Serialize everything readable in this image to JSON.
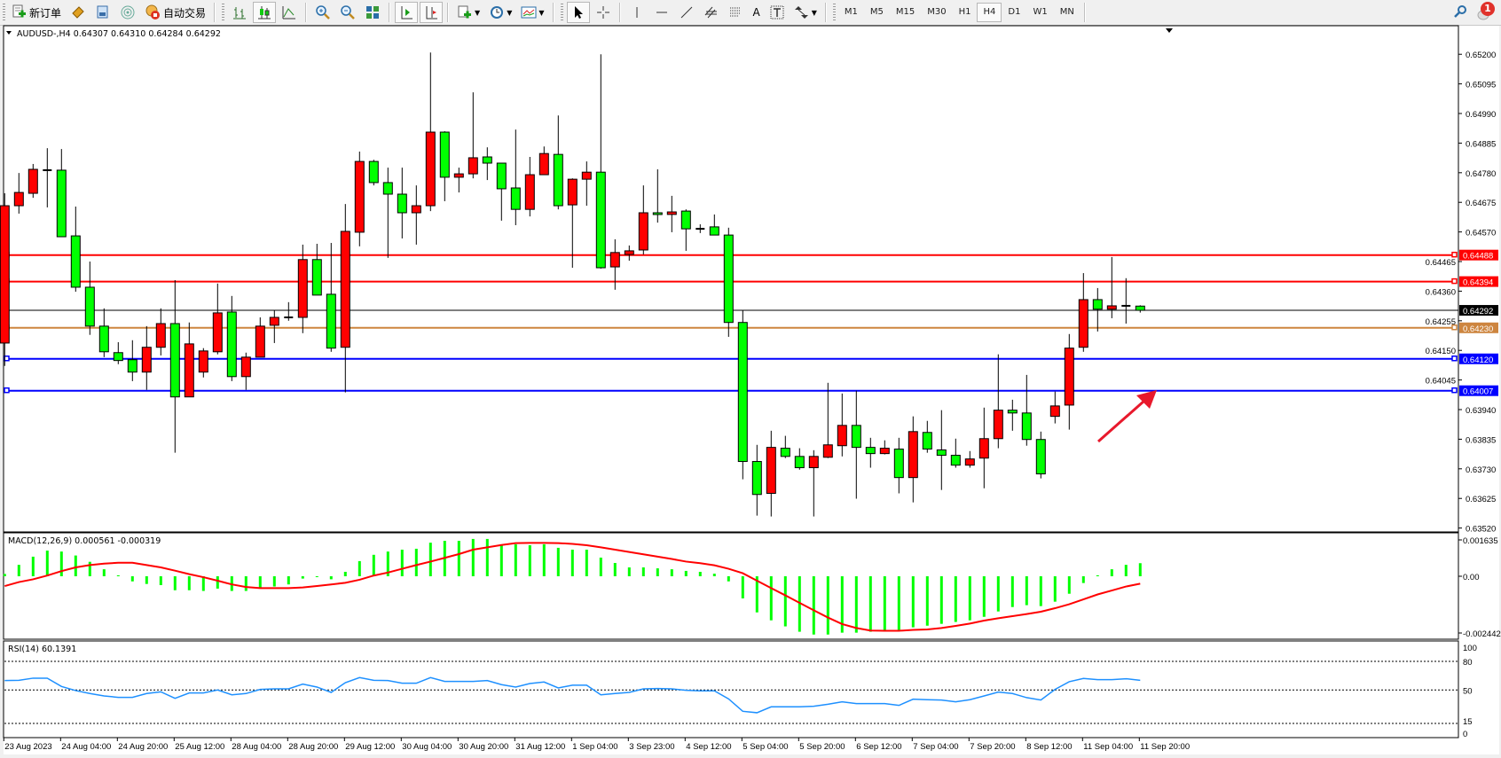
{
  "toolbar": {
    "new_order_label": "新订单",
    "auto_trading_label": "自动交易",
    "timeframes": [
      "M1",
      "M5",
      "M15",
      "M30",
      "H1",
      "H4",
      "D1",
      "W1",
      "MN"
    ],
    "active_timeframe": "H4",
    "notification_count": "1",
    "text_tool_label": "A"
  },
  "chart": {
    "header": "AUDUSD-,H4  0.64307 0.64310 0.64284 0.64292",
    "price_ticks": [
      "0.65200",
      "0.65095",
      "0.64990",
      "0.64885",
      "0.64780",
      "0.64675",
      "0.64570",
      "0.64465",
      "0.64360",
      "0.64255",
      "0.64150",
      "0.64045",
      "0.63940",
      "0.63835",
      "0.63730",
      "0.63625",
      "0.63520"
    ],
    "bid_line": {
      "price": 0.64292,
      "label": "0.64292",
      "color": "#000000"
    },
    "levels": [
      {
        "price": 0.64488,
        "label": "0.64488",
        "color": "#ff0000"
      },
      {
        "price": 0.64394,
        "label": "0.64394",
        "color": "#ff0000"
      },
      {
        "price": 0.6423,
        "label": "0.64230",
        "color": "#cd853f"
      },
      {
        "price": 0.6412,
        "label": "0.64120",
        "color": "#0000ff"
      },
      {
        "price": 0.64007,
        "label": "0.64007",
        "color": "#0000ff"
      }
    ],
    "arrow_color": "#e8192c",
    "bull_color": "#ff0000",
    "bear_color": "#00ff00"
  },
  "chart_data": {
    "type": "candlestick",
    "symbol": "AUDUSD-",
    "timeframe": "H4",
    "ylim": [
      0.6352,
      0.652
    ],
    "x_labels": [
      "23 Aug 2023",
      "24 Aug 04:00",
      "24 Aug 20:00",
      "25 Aug 12:00",
      "28 Aug 04:00",
      "28 Aug 20:00",
      "29 Aug 12:00",
      "30 Aug 04:00",
      "30 Aug 20:00",
      "31 Aug 12:00",
      "1 Sep 04:00",
      "3 Sep 23:00",
      "4 Sep 12:00",
      "5 Sep 04:00",
      "5 Sep 20:00",
      "6 Sep 12:00",
      "7 Sep 04:00",
      "7 Sep 20:00",
      "8 Sep 12:00",
      "11 Sep 04:00",
      "11 Sep 20:00"
    ],
    "ohlc": [
      [
        0.64176,
        0.64707,
        0.64095,
        0.64663
      ],
      [
        0.64663,
        0.64779,
        0.64635,
        0.6471
      ],
      [
        0.64707,
        0.64811,
        0.64691,
        0.64792
      ],
      [
        0.64789,
        0.64867,
        0.64657,
        0.64789
      ],
      [
        0.64789,
        0.64864,
        0.64553,
        0.64553
      ],
      [
        0.64556,
        0.6466,
        0.64358,
        0.64374
      ],
      [
        0.64374,
        0.64465,
        0.64205,
        0.64236
      ],
      [
        0.64236,
        0.64299,
        0.64126,
        0.64145
      ],
      [
        0.64142,
        0.64179,
        0.64101,
        0.64114
      ],
      [
        0.64117,
        0.64186,
        0.64041,
        0.64073
      ],
      [
        0.64073,
        0.64236,
        0.6401,
        0.64161
      ],
      [
        0.64161,
        0.64299,
        0.64132,
        0.64245
      ],
      [
        0.64245,
        0.64399,
        0.63787,
        0.63985
      ],
      [
        0.63985,
        0.64249,
        0.63985,
        0.64173
      ],
      [
        0.64073,
        0.64158,
        0.64054,
        0.64148
      ],
      [
        0.64145,
        0.64387,
        0.64136,
        0.64283
      ],
      [
        0.64286,
        0.64343,
        0.64041,
        0.64057
      ],
      [
        0.64057,
        0.64142,
        0.6401,
        0.64126
      ],
      [
        0.64126,
        0.64267,
        0.64126,
        0.64236
      ],
      [
        0.64239,
        0.64293,
        0.64176,
        0.64267
      ],
      [
        0.64267,
        0.64321,
        0.64255,
        0.64267
      ],
      [
        0.64267,
        0.64525,
        0.64211,
        0.64472
      ],
      [
        0.64472,
        0.64528,
        0.64346,
        0.64346
      ],
      [
        0.64349,
        0.64531,
        0.64145,
        0.64158
      ],
      [
        0.64161,
        0.64669,
        0.64001,
        0.64572
      ],
      [
        0.64569,
        0.64855,
        0.64519,
        0.6482
      ],
      [
        0.6482,
        0.64826,
        0.64735,
        0.64745
      ],
      [
        0.64745,
        0.64798,
        0.64478,
        0.64704
      ],
      [
        0.64704,
        0.64798,
        0.64547,
        0.64638
      ],
      [
        0.64638,
        0.64735,
        0.64525,
        0.64663
      ],
      [
        0.64663,
        0.65206,
        0.64644,
        0.64924
      ],
      [
        0.64924,
        0.64927,
        0.64679,
        0.64764
      ],
      [
        0.64764,
        0.64798,
        0.6471,
        0.64776
      ],
      [
        0.64776,
        0.65065,
        0.6476,
        0.64833
      ],
      [
        0.64836,
        0.6487,
        0.64754,
        0.64814
      ],
      [
        0.64814,
        0.64814,
        0.6461,
        0.64723
      ],
      [
        0.64726,
        0.64933,
        0.64594,
        0.6465
      ],
      [
        0.6465,
        0.64836,
        0.64625,
        0.64773
      ],
      [
        0.64773,
        0.64873,
        0.64773,
        0.64848
      ],
      [
        0.64845,
        0.64983,
        0.6465,
        0.64663
      ],
      [
        0.64666,
        0.6476,
        0.64443,
        0.64757
      ],
      [
        0.64757,
        0.6482,
        0.64663,
        0.64782
      ],
      [
        0.64782,
        0.652,
        0.6444,
        0.64443
      ],
      [
        0.64446,
        0.64544,
        0.64365,
        0.64497
      ],
      [
        0.6449,
        0.64522,
        0.64468,
        0.64503
      ],
      [
        0.64506,
        0.64735,
        0.6449,
        0.64638
      ],
      [
        0.64638,
        0.64792,
        0.64603,
        0.64632
      ],
      [
        0.64632,
        0.64698,
        0.64569,
        0.64641
      ],
      [
        0.64644,
        0.6465,
        0.64503,
        0.64581
      ],
      [
        0.64581,
        0.64597,
        0.64566,
        0.64581
      ],
      [
        0.64588,
        0.64632,
        0.64559,
        0.64559
      ],
      [
        0.64559,
        0.64585,
        0.64198,
        0.64249
      ],
      [
        0.64249,
        0.64293,
        0.63693,
        0.63756
      ],
      [
        0.63756,
        0.63815,
        0.63564,
        0.63639
      ],
      [
        0.63643,
        0.63865,
        0.63561,
        0.63806
      ],
      [
        0.63803,
        0.63847,
        0.63768,
        0.63774
      ],
      [
        0.63774,
        0.63803,
        0.63727,
        0.63734
      ],
      [
        0.63734,
        0.63796,
        0.63561,
        0.63774
      ],
      [
        0.63771,
        0.64035,
        0.63768,
        0.63815
      ],
      [
        0.63812,
        0.63997,
        0.63774,
        0.63884
      ],
      [
        0.63884,
        0.64007,
        0.63624,
        0.63806
      ],
      [
        0.63806,
        0.6384,
        0.63734,
        0.63784
      ],
      [
        0.63784,
        0.63831,
        0.63781,
        0.63803
      ],
      [
        0.638,
        0.6384,
        0.63643,
        0.63699
      ],
      [
        0.63699,
        0.63916,
        0.63611,
        0.63862
      ],
      [
        0.63859,
        0.639,
        0.63787,
        0.638
      ],
      [
        0.63797,
        0.63938,
        0.63655,
        0.63778
      ],
      [
        0.63778,
        0.63837,
        0.63734,
        0.63743
      ],
      [
        0.63743,
        0.63793,
        0.63734,
        0.63765
      ],
      [
        0.63768,
        0.63947,
        0.63661,
        0.63837
      ],
      [
        0.63837,
        0.64136,
        0.63803,
        0.63938
      ],
      [
        0.63938,
        0.63975,
        0.63865,
        0.63928
      ],
      [
        0.63928,
        0.64063,
        0.63812,
        0.63834
      ],
      [
        0.63834,
        0.63862,
        0.63696,
        0.63712
      ],
      [
        0.63916,
        0.64004,
        0.63891,
        0.63953
      ],
      [
        0.63956,
        0.64208,
        0.63869,
        0.64158
      ],
      [
        0.64161,
        0.64424,
        0.64145,
        0.6433
      ],
      [
        0.6433,
        0.64371,
        0.64217,
        0.64296
      ],
      [
        0.64296,
        0.64481,
        0.64264,
        0.64308
      ],
      [
        0.64308,
        0.64406,
        0.64245,
        0.64308
      ],
      [
        0.64307,
        0.6431,
        0.64284,
        0.64292
      ]
    ],
    "macd": {
      "label": "MACD(12,26,9) 0.000561 -0.000319",
      "ticks": [
        "0.001635",
        "0.00",
        "-0.002442"
      ],
      "ylim": [
        -0.002442,
        0.001635
      ],
      "histogram_color": "#00ff00",
      "signal_color": "#ff0000",
      "histogram": [
        0.0001,
        0.00049,
        0.00084,
        0.0011,
        0.00106,
        0.00089,
        0.00062,
        0.0003,
        4e-05,
        -0.00022,
        -0.00033,
        -0.00038,
        -0.0006,
        -0.0006,
        -0.00063,
        -0.00053,
        -0.00063,
        -0.00063,
        -0.00051,
        -0.00044,
        -0.00035,
        -0.0001,
        -3e-05,
        -0.00013,
        0.00019,
        0.00065,
        0.00092,
        0.00106,
        0.00114,
        0.00118,
        0.00144,
        0.00152,
        0.00152,
        0.0016,
        0.0016,
        0.00137,
        0.00137,
        0.00133,
        0.00137,
        0.00122,
        0.00114,
        0.00114,
        0.0008,
        0.00057,
        0.00038,
        0.00038,
        0.00034,
        0.0003,
        0.00023,
        0.00019,
        0.00011,
        -0.00022,
        -0.00095,
        -0.00155,
        -0.00189,
        -0.00215,
        -0.00238,
        -0.0025,
        -0.0025,
        -0.00242,
        -0.00242,
        -0.00238,
        -0.00231,
        -0.00231,
        -0.00219,
        -0.00212,
        -0.00204,
        -0.00196,
        -0.00189,
        -0.00174,
        -0.00151,
        -0.00132,
        -0.00124,
        -0.00128,
        -0.00109,
        -0.00075,
        -0.00029,
        4e-05,
        0.0003,
        0.00049,
        0.000561
      ],
      "signal": [
        -0.00042,
        -0.00025,
        -0.00013,
        3e-05,
        0.00022,
        0.00038,
        0.00048,
        0.00054,
        0.00058,
        0.00058,
        0.00048,
        0.00038,
        0.00024,
        9e-05,
        -4e-05,
        -0.00019,
        -0.00035,
        -0.00046,
        -0.00051,
        -0.00051,
        -0.00051,
        -0.00048,
        -0.00042,
        -0.00035,
        -0.00028,
        -0.00015,
        3e-05,
        0.00016,
        0.00032,
        0.00048,
        0.00063,
        0.00079,
        0.00095,
        0.00114,
        0.00124,
        0.00134,
        0.00142,
        0.00143,
        0.00143,
        0.00142,
        0.00139,
        0.00133,
        0.00124,
        0.00114,
        0.00104,
        0.00094,
        0.00084,
        0.00074,
        0.00063,
        0.00056,
        0.00047,
        0.00032,
        0.00013,
        -0.00019,
        -0.00051,
        -0.00082,
        -0.00114,
        -0.00146,
        -0.00177,
        -0.00205,
        -0.00222,
        -0.00233,
        -0.00234,
        -0.00234,
        -0.0023,
        -0.00228,
        -0.00222,
        -0.00213,
        -0.00203,
        -0.0019,
        -0.0018,
        -0.00171,
        -0.00162,
        -0.00152,
        -0.00137,
        -0.0012,
        -0.00099,
        -0.00078,
        -0.00061,
        -0.00044,
        -0.000319
      ]
    },
    "rsi": {
      "label": "RSI(14) 60.1391",
      "ticks": [
        "100",
        "80",
        "50",
        "15",
        "0"
      ],
      "levels": [
        80,
        50,
        15
      ],
      "ylim": [
        0,
        100
      ],
      "color": "#1e90ff",
      "values": [
        59.9,
        60.2,
        62.4,
        62.4,
        53.7,
        49.4,
        46.3,
        43.8,
        42.3,
        42.3,
        46.3,
        48.1,
        41.3,
        46.9,
        46.9,
        50.0,
        45.0,
        46.3,
        50.6,
        51.2,
        51.2,
        56.2,
        53.1,
        47.5,
        57.7,
        63.0,
        60.2,
        59.9,
        57.1,
        57.1,
        63.0,
        59.0,
        59.0,
        59.0,
        59.9,
        55.6,
        53.1,
        56.8,
        58.4,
        52.2,
        55.0,
        55.0,
        45.0,
        46.3,
        47.5,
        51.2,
        51.5,
        51.2,
        49.7,
        49.1,
        49.1,
        40.7,
        27.7,
        26.2,
        32.4,
        32.4,
        32.4,
        33.0,
        35.1,
        37.6,
        35.8,
        35.8,
        35.8,
        33.9,
        40.4,
        39.8,
        39.5,
        37.6,
        39.8,
        43.8,
        47.8,
        46.3,
        42.0,
        39.5,
        50.6,
        58.7,
        62.1,
        60.8,
        60.8,
        61.8,
        60.1391
      ]
    }
  }
}
